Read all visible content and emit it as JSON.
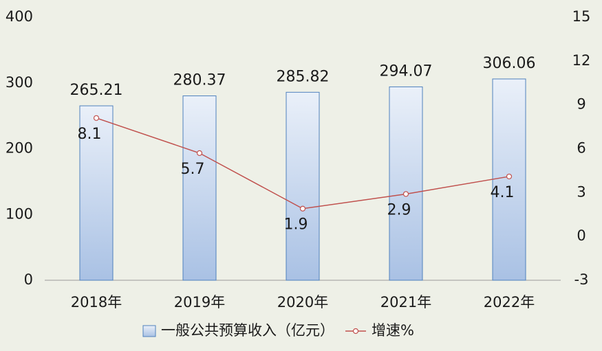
{
  "chart_data": {
    "type": "bar",
    "categories": [
      "2018年",
      "2019年",
      "2020年",
      "2021年",
      "2022年"
    ],
    "series": [
      {
        "name": "一般公共预算收入（亿元）",
        "type": "bar",
        "color": "#4f81bd",
        "values": [
          265.21,
          280.37,
          285.82,
          294.07,
          306.06
        ]
      },
      {
        "name": "增速%",
        "type": "line",
        "axis": "y2",
        "color": "#c0504d",
        "values": [
          8.1,
          5.7,
          1.9,
          2.9,
          4.1
        ]
      }
    ],
    "ylim": [
      0,
      400
    ],
    "yticks": [
      0,
      100,
      200,
      300,
      400
    ],
    "y2lim": [
      -3,
      15
    ],
    "y2ticks": [
      -3,
      0,
      3,
      6,
      9,
      12,
      15
    ],
    "grid": false,
    "legend": "bottom"
  }
}
